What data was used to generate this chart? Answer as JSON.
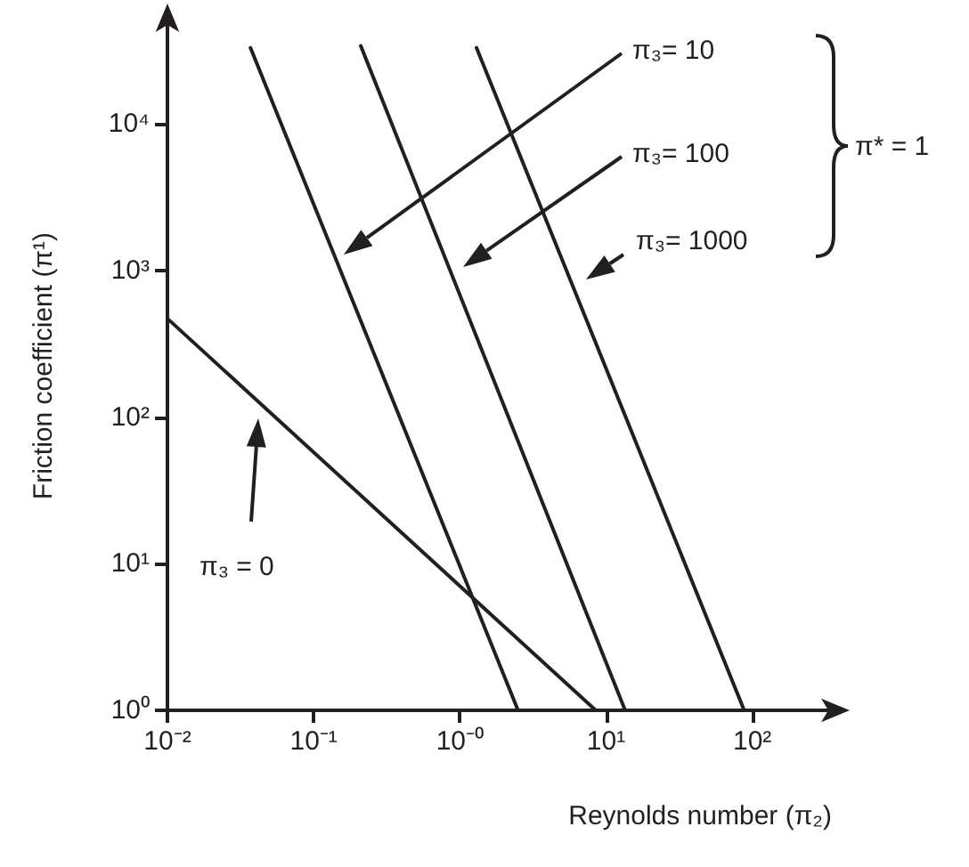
{
  "chart_data": {
    "type": "line",
    "xlabel": "Reynolds number (π₂)",
    "ylabel": "Friction coefficient (π¹)",
    "series": [
      {
        "color": "#231f20",
        "x": [
          0.01,
          8.5
        ],
        "values": [
          470,
          1
        ]
      },
      {
        "color": "#231f20",
        "x": [
          0.037,
          2.5
        ],
        "values": [
          33000,
          1
        ]
      },
      {
        "color": "#231f20",
        "x": [
          0.21,
          13.5
        ],
        "values": [
          34000,
          1
        ]
      },
      {
        "color": "#231f20",
        "x": [
          1.3,
          88
        ],
        "values": [
          33000,
          1
        ]
      }
    ],
    "log": "xy",
    "xlim": [
      0.01,
      350
    ],
    "ylim": [
      1,
      50000
    ],
    "xticks": [
      {
        "value": 0.01,
        "label": "10⁻²"
      },
      {
        "value": 0.1,
        "label": "10⁻¹"
      },
      {
        "value": 1,
        "label": "10⁻⁰"
      },
      {
        "value": 10,
        "label": "10¹"
      },
      {
        "value": 100,
        "label": "10²"
      }
    ],
    "yticks": [
      {
        "value": 1,
        "label": "10⁰"
      },
      {
        "value": 10,
        "label": "10¹"
      },
      {
        "value": 100,
        "label": "10²"
      },
      {
        "value": 1000,
        "label": "10³"
      },
      {
        "value": 10000,
        "label": "10⁴"
      }
    ],
    "grid": false,
    "marker": "none",
    "line_style": "solid",
    "annotations": [
      "π₃= 10",
      "π₃= 100",
      "π₃= 1000",
      "π₃ = 0",
      "π* = 1"
    ]
  }
}
